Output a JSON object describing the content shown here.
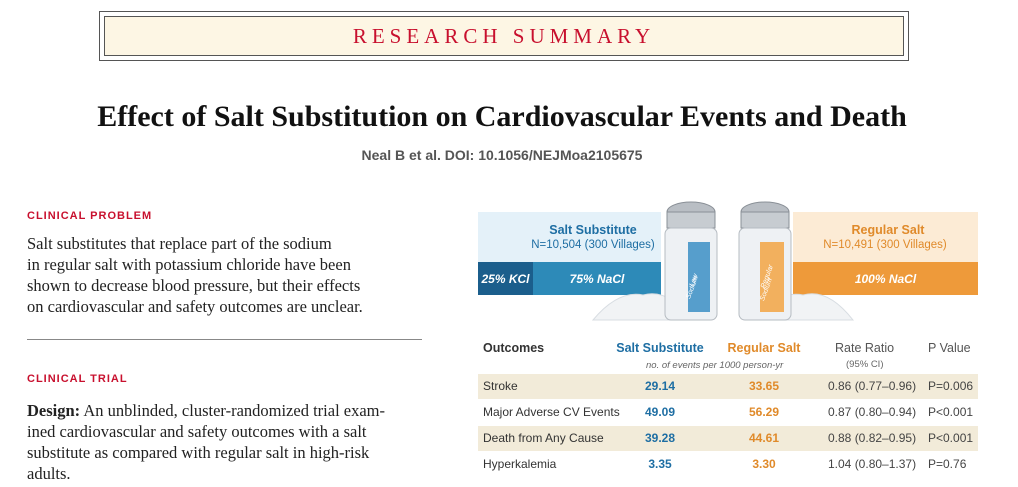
{
  "banner": "RESEARCH SUMMARY",
  "title": "Effect of Salt Substitution on Cardiovascular Events and Death",
  "citation": "Neal B et al. DOI: 10.1056/NEJMoa2105675",
  "clinical_problem": {
    "label": "CLINICAL PROBLEM",
    "line1": "Salt substitutes that replace part of the sodium",
    "line2": "in regular salt with potassium chloride have been",
    "line3": "shown to decrease blood pressure, but their effects",
    "line4": "on cardiovascular and safety outcomes are unclear."
  },
  "clinical_trial": {
    "label": "CLINICAL TRIAL",
    "design_label": "Design:",
    "line1": "An unblinded, cluster-randomized trial exam-",
    "line2": "ined cardiovascular and safety outcomes with a salt",
    "line3": "substitute as compared with regular salt in high-risk",
    "line4": "adults."
  },
  "graphic": {
    "left_title": "Salt Substitute",
    "left_sub": "N=10,504 (300 Villages)",
    "left_kcl": "25% KCl",
    "left_nacl": "75% NaCl",
    "left_label1": "Low",
    "left_label2": "Sodium",
    "right_title": "Regular Salt",
    "right_sub": "N=10,491 (300 Villages)",
    "right_nacl": "100% NaCl",
    "right_label1": "Regular",
    "right_label2": "Sodium",
    "colors": {
      "blue": "#1e6ea3",
      "orange": "#e08a2a"
    }
  },
  "table": {
    "headers": {
      "outcomes": "Outcomes",
      "ss": "Salt Substitute",
      "rs": "Regular Salt",
      "rr": "Rate Ratio",
      "rr_sub": "(95% CI)",
      "pv": "P Value",
      "events_note": "no. of events per 1000 person-yr"
    },
    "rows": [
      {
        "name": "Stroke",
        "ss": "29.14",
        "rs": "33.65",
        "rr": "0.86 (0.77–0.96)",
        "pv": "P=0.006"
      },
      {
        "name": "Major Adverse CV Events",
        "ss": "49.09",
        "rs": "56.29",
        "rr": "0.87 (0.80–0.94)",
        "pv": "P<0.001"
      },
      {
        "name": "Death from Any Cause",
        "ss": "39.28",
        "rs": "44.61",
        "rr": "0.88 (0.82–0.95)",
        "pv": "P<0.001"
      },
      {
        "name": "Hyperkalemia",
        "ss": "3.35",
        "rs": "3.30",
        "rr": "1.04 (0.80–1.37)",
        "pv": "P=0.76"
      }
    ]
  }
}
